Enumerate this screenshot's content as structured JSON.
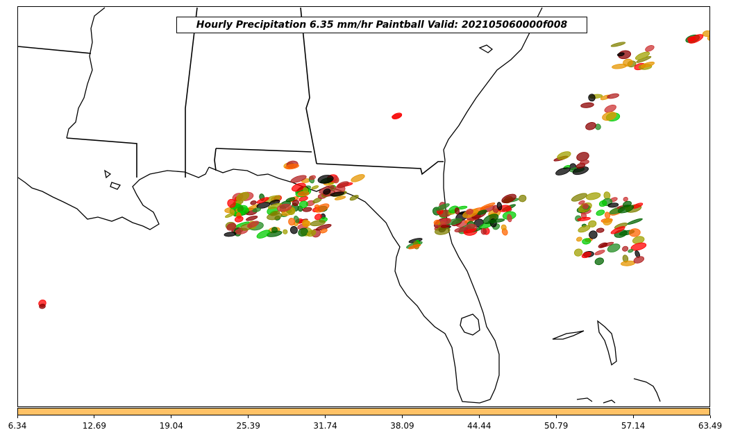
{
  "title": "Hourly Precipitation 6.35 mm/hr Paintball Valid: 202105060000f008",
  "colorbar": {
    "color": "#ffc266",
    "ticks": [
      "6.34",
      "12.69",
      "19.04",
      "25.39",
      "31.74",
      "38.09",
      "44.44",
      "50.79",
      "57.14",
      "63.49"
    ]
  },
  "member_colors": [
    "#ff0000",
    "#e69500",
    "#000000",
    "#8b0000",
    "#808000",
    "#006400",
    "#00cc00",
    "#a0a000",
    "#ff6600",
    "#b22222",
    "#cc3333",
    "#228b22"
  ]
}
